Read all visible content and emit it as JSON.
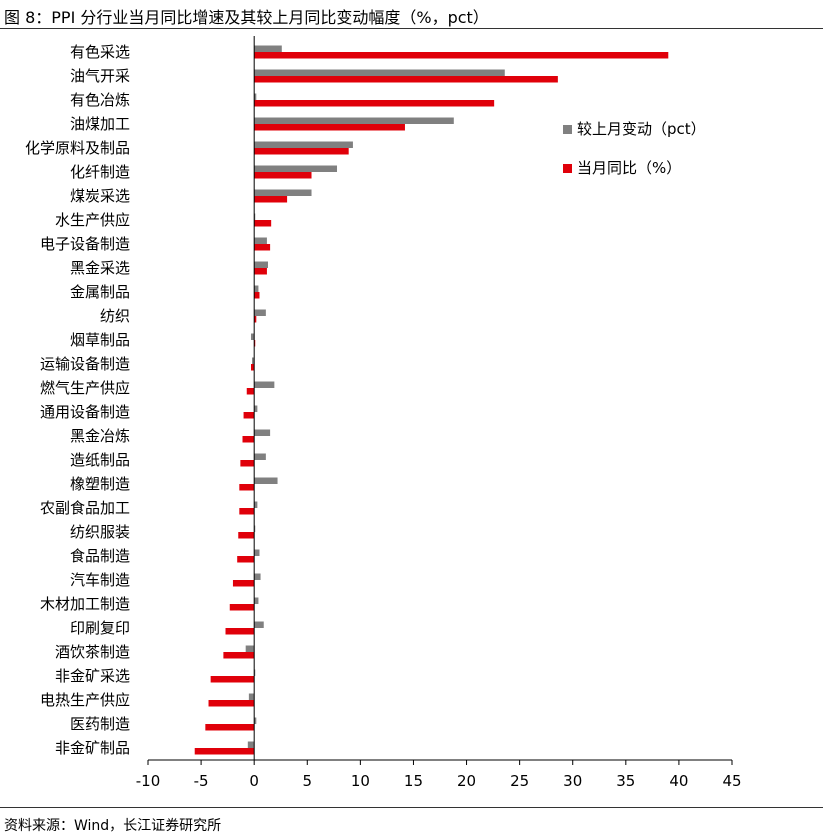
{
  "figure": {
    "title": "图 8：PPI 分行业当月同比增速及其较上月同比变动幅度（%，pct）",
    "source": "资料来源：Wind，长江证券研究所"
  },
  "colors": {
    "change": "#808080",
    "yoy": "#e0000a"
  },
  "chart_data": {
    "type": "bar",
    "orientation": "horizontal",
    "categories": [
      "有色采选",
      "油气开采",
      "有色冶炼",
      "油煤加工",
      "化学原料及制品",
      "化纤制造",
      "煤炭采选",
      "水生产供应",
      "电子设备制造",
      "黑金采选",
      "金属制品",
      "纺织",
      "烟草制品",
      "运输设备制造",
      "燃气生产供应",
      "通用设备制造",
      "黑金冶炼",
      "造纸制品",
      "橡塑制造",
      "农副食品加工",
      "纺织服装",
      "食品制造",
      "汽车制造",
      "木材加工制造",
      "印刷复印",
      "酒饮茶制造",
      "非金矿采选",
      "电热生产供应",
      "医药制造",
      "非金矿制品"
    ],
    "series": [
      {
        "name": "较上月变动（pct）",
        "values": [
          2.6,
          23.6,
          0.2,
          18.8,
          9.3,
          7.8,
          5.4,
          0.1,
          1.2,
          1.3,
          0.4,
          1.1,
          -0.3,
          -0.2,
          1.9,
          0.3,
          1.5,
          1.1,
          2.2,
          0.3,
          0.1,
          0.5,
          0.6,
          0.4,
          0.9,
          -0.8,
          0.1,
          -0.5,
          0.2,
          -0.6
        ]
      },
      {
        "name": "当月同比（%）",
        "values": [
          39.0,
          28.6,
          22.6,
          14.2,
          8.9,
          5.4,
          3.1,
          1.6,
          1.5,
          1.2,
          0.5,
          0.2,
          0.1,
          -0.3,
          -0.7,
          -1.0,
          -1.1,
          -1.3,
          -1.4,
          -1.4,
          -1.5,
          -1.6,
          -2.0,
          -2.3,
          -2.7,
          -2.9,
          -4.1,
          -4.3,
          -4.6,
          -5.6
        ]
      }
    ],
    "x_ticks": [
      "-10",
      "-5",
      "0",
      "5",
      "10",
      "15",
      "20",
      "25",
      "30",
      "35",
      "40",
      "45"
    ],
    "xlim": [
      -10,
      45
    ],
    "legend_position": "right",
    "grid": false
  }
}
